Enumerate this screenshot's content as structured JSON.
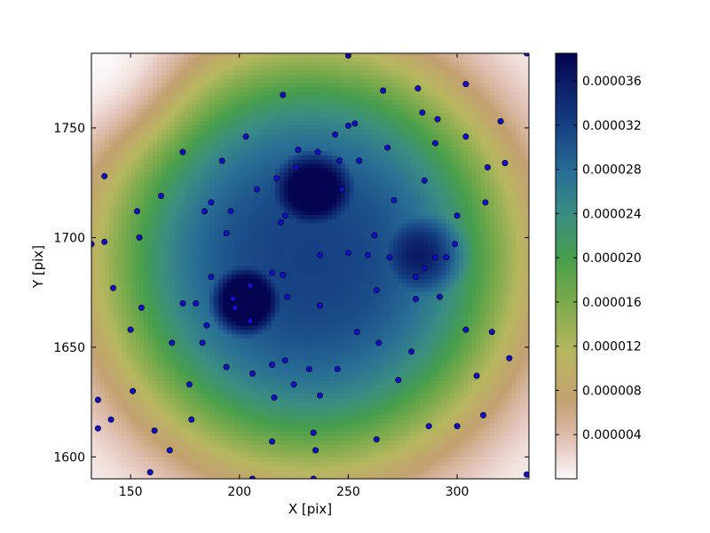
{
  "chart_data": {
    "type": "heatmap",
    "title": "",
    "xlabel": "X [pix]",
    "ylabel": "Y [pix]",
    "xlim": [
      132,
      333
    ],
    "ylim": [
      1590,
      1784
    ],
    "xticks": [
      150,
      200,
      250,
      300
    ],
    "yticks": [
      1600,
      1650,
      1700,
      1750
    ],
    "colormap": "gist_earth_r",
    "colorbar": {
      "range": [
        0,
        3.85e-05
      ],
      "ticks": [
        4e-06,
        8e-06,
        1.2e-05,
        1.6e-05,
        2e-05,
        2.4e-05,
        2.8e-05,
        3.2e-05,
        3.6e-05
      ],
      "tick_labels": [
        "0.000004",
        "0.000008",
        "0.000012",
        "0.000016",
        "0.000020",
        "0.000024",
        "0.000028",
        "0.000032",
        "0.000036"
      ]
    },
    "peaks": [
      {
        "x": 203,
        "y": 1671,
        "value": 3.85e-05
      },
      {
        "x": 234,
        "y": 1722,
        "value": 3.6e-05
      },
      {
        "x": 283,
        "y": 1692,
        "value": 2.9e-05
      }
    ],
    "marker_color": "#1010cc",
    "points": [
      [
        250,
        1783
      ],
      [
        332,
        1784
      ],
      [
        138,
        1728
      ],
      [
        132,
        1697
      ],
      [
        138,
        1698
      ],
      [
        142,
        1677
      ],
      [
        135,
        1626
      ],
      [
        135,
        1613
      ],
      [
        141,
        1617
      ],
      [
        150,
        1658
      ],
      [
        151,
        1630
      ],
      [
        155,
        1668
      ],
      [
        153,
        1712
      ],
      [
        154,
        1700
      ],
      [
        159,
        1593
      ],
      [
        161,
        1612
      ],
      [
        164,
        1719
      ],
      [
        168,
        1603
      ],
      [
        169,
        1652
      ],
      [
        174,
        1739
      ],
      [
        174,
        1670
      ],
      [
        177,
        1633
      ],
      [
        178,
        1617
      ],
      [
        180,
        1670
      ],
      [
        183,
        1652
      ],
      [
        184,
        1712
      ],
      [
        185,
        1660
      ],
      [
        187,
        1716
      ],
      [
        187,
        1682
      ],
      [
        192,
        1735
      ],
      [
        194,
        1702
      ],
      [
        194,
        1641
      ],
      [
        196,
        1712
      ],
      [
        197,
        1672
      ],
      [
        198,
        1668
      ],
      [
        203,
        1746
      ],
      [
        205,
        1678
      ],
      [
        205,
        1662
      ],
      [
        206,
        1638
      ],
      [
        206,
        1590
      ],
      [
        208,
        1722
      ],
      [
        215,
        1607
      ],
      [
        215,
        1642
      ],
      [
        215,
        1684
      ],
      [
        216,
        1627
      ],
      [
        217,
        1727
      ],
      [
        219,
        1707
      ],
      [
        220,
        1683
      ],
      [
        220,
        1765
      ],
      [
        221,
        1644
      ],
      [
        221,
        1710
      ],
      [
        222,
        1673
      ],
      [
        225,
        1633
      ],
      [
        226,
        1732
      ],
      [
        227,
        1740
      ],
      [
        232,
        1640
      ],
      [
        234,
        1611
      ],
      [
        234,
        1590
      ],
      [
        235,
        1603
      ],
      [
        236,
        1739
      ],
      [
        237,
        1692
      ],
      [
        237,
        1669
      ],
      [
        237,
        1628
      ],
      [
        244,
        1747
      ],
      [
        245,
        1640
      ],
      [
        246,
        1735
      ],
      [
        247,
        1722
      ],
      [
        250,
        1751
      ],
      [
        250,
        1693
      ],
      [
        253,
        1752
      ],
      [
        254,
        1657
      ],
      [
        255,
        1735
      ],
      [
        259,
        1692
      ],
      [
        262,
        1701
      ],
      [
        263,
        1676
      ],
      [
        263,
        1608
      ],
      [
        264,
        1652
      ],
      [
        266,
        1767
      ],
      [
        268,
        1741
      ],
      [
        269,
        1691
      ],
      [
        271,
        1717
      ],
      [
        273,
        1635
      ],
      [
        279,
        1648
      ],
      [
        281,
        1682
      ],
      [
        281,
        1672
      ],
      [
        282,
        1768
      ],
      [
        284,
        1757
      ],
      [
        285,
        1686
      ],
      [
        285,
        1726
      ],
      [
        287,
        1614
      ],
      [
        290,
        1691
      ],
      [
        290,
        1743
      ],
      [
        291,
        1754
      ],
      [
        292,
        1673
      ],
      [
        295,
        1691
      ],
      [
        299,
        1697
      ],
      [
        300,
        1614
      ],
      [
        300,
        1710
      ],
      [
        304,
        1770
      ],
      [
        304,
        1746
      ],
      [
        304,
        1658
      ],
      [
        309,
        1637
      ],
      [
        312,
        1619
      ],
      [
        313,
        1716
      ],
      [
        314,
        1732
      ],
      [
        316,
        1657
      ],
      [
        320,
        1753
      ],
      [
        322,
        1734
      ],
      [
        324,
        1645
      ],
      [
        332,
        1592
      ]
    ]
  }
}
